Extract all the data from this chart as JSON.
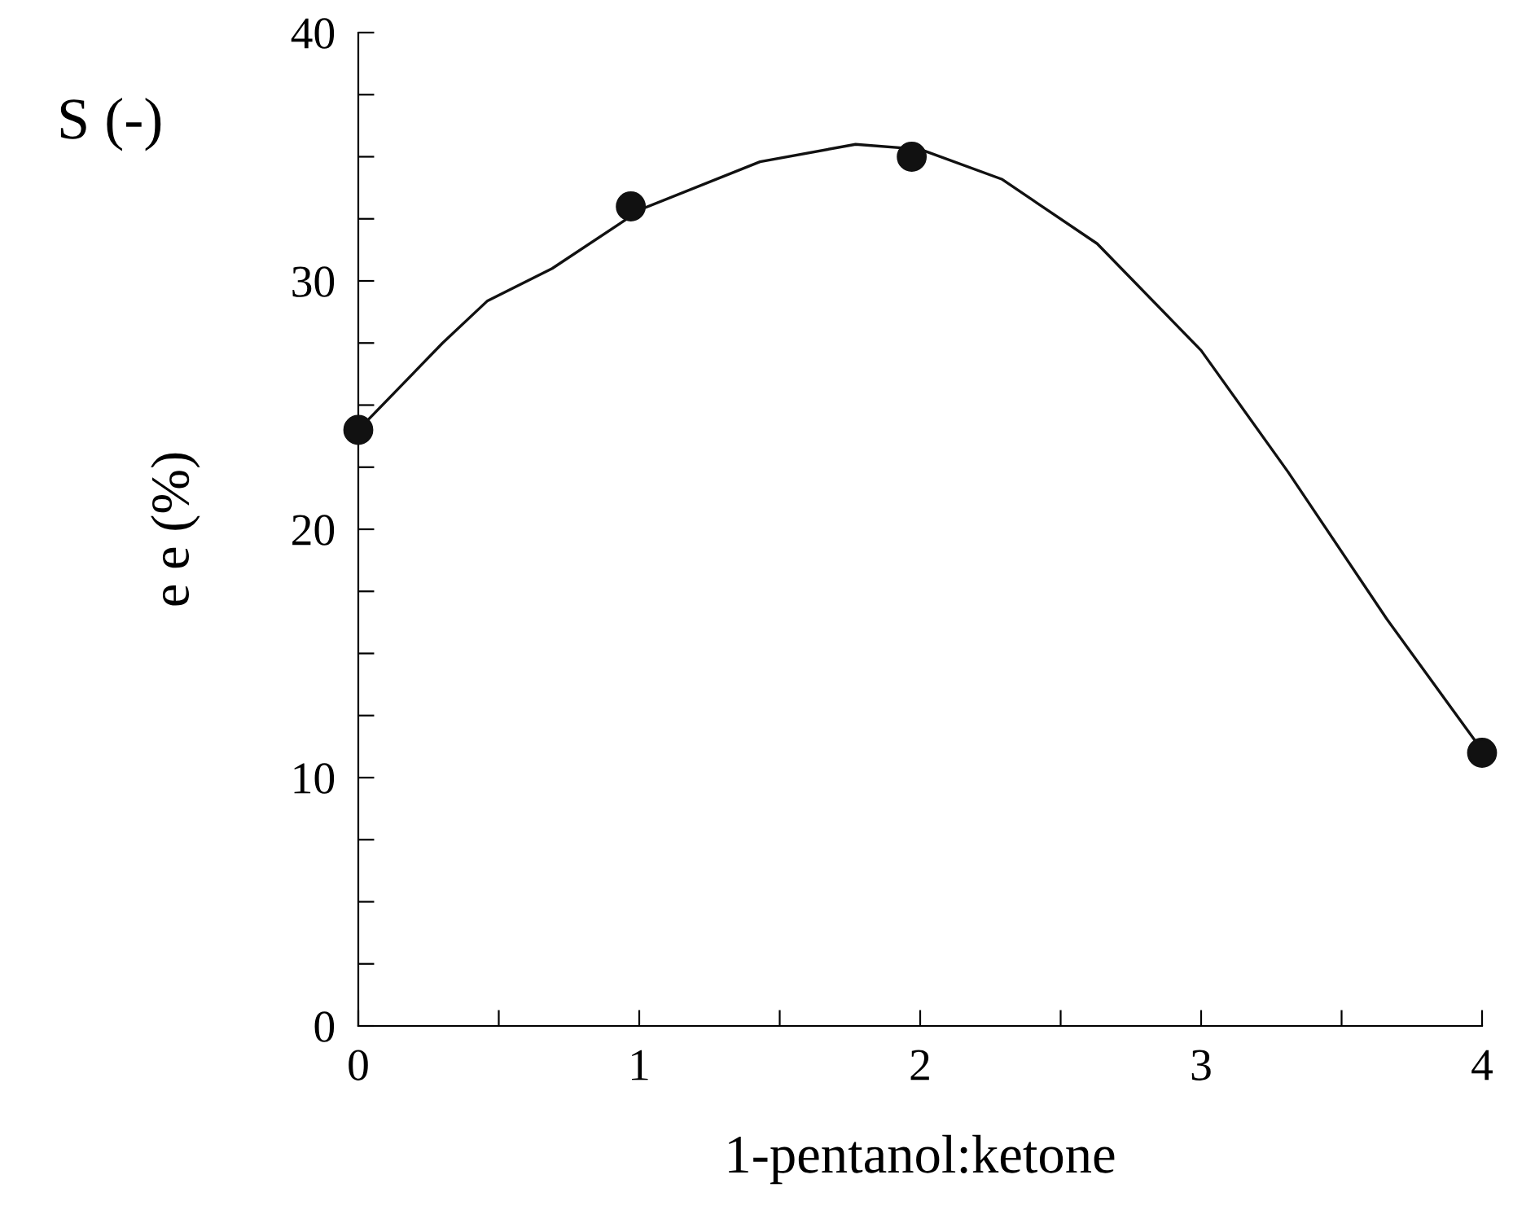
{
  "chart_data": {
    "type": "scatter",
    "xlabel": "1-pentanol:ketone",
    "ylabel": "e e (%)",
    "annotations": [
      "S (-)"
    ],
    "series": [
      {
        "color": "#111111",
        "x": [
          0,
          0.97,
          1.97,
          4
        ],
        "values": [
          24,
          33,
          35,
          11
        ],
        "marker": "circle"
      },
      {
        "type": "line",
        "color": "#111111",
        "x": [
          0,
          0.3,
          0.46,
          0.69,
          1.01,
          1.43,
          1.77,
          2.0,
          2.29,
          2.63,
          3.0,
          3.31,
          3.66,
          4.0
        ],
        "values": [
          24,
          27.5,
          29.2,
          30.5,
          32.9,
          34.8,
          35.5,
          35.3,
          34.1,
          31.5,
          27.2,
          22.3,
          16.4,
          11.1
        ]
      }
    ],
    "xlim": [
      0,
      4
    ],
    "ylim": [
      0,
      40
    ],
    "xticks": [
      0,
      {
        "value": 0.5,
        "label": null
      },
      1,
      {
        "value": 1.5,
        "label": null
      },
      2,
      {
        "value": 2.5,
        "label": null
      },
      3,
      {
        "value": 3.5,
        "label": null
      },
      4
    ],
    "yticks": [
      0,
      {
        "value": 2.5,
        "label": null
      },
      {
        "value": 5,
        "label": null
      },
      {
        "value": 7.5,
        "label": null
      },
      10,
      {
        "value": 12.5,
        "label": null
      },
      {
        "value": 15,
        "label": null
      },
      {
        "value": 17.5,
        "label": null
      },
      20,
      {
        "value": 22.5,
        "label": null
      },
      {
        "value": 25,
        "label": null
      },
      {
        "value": 27.5,
        "label": null
      },
      30,
      {
        "value": 32.5,
        "label": null
      },
      {
        "value": 35,
        "label": null
      },
      {
        "value": 37.5,
        "label": null
      },
      40
    ],
    "grid": false,
    "legend": false
  }
}
